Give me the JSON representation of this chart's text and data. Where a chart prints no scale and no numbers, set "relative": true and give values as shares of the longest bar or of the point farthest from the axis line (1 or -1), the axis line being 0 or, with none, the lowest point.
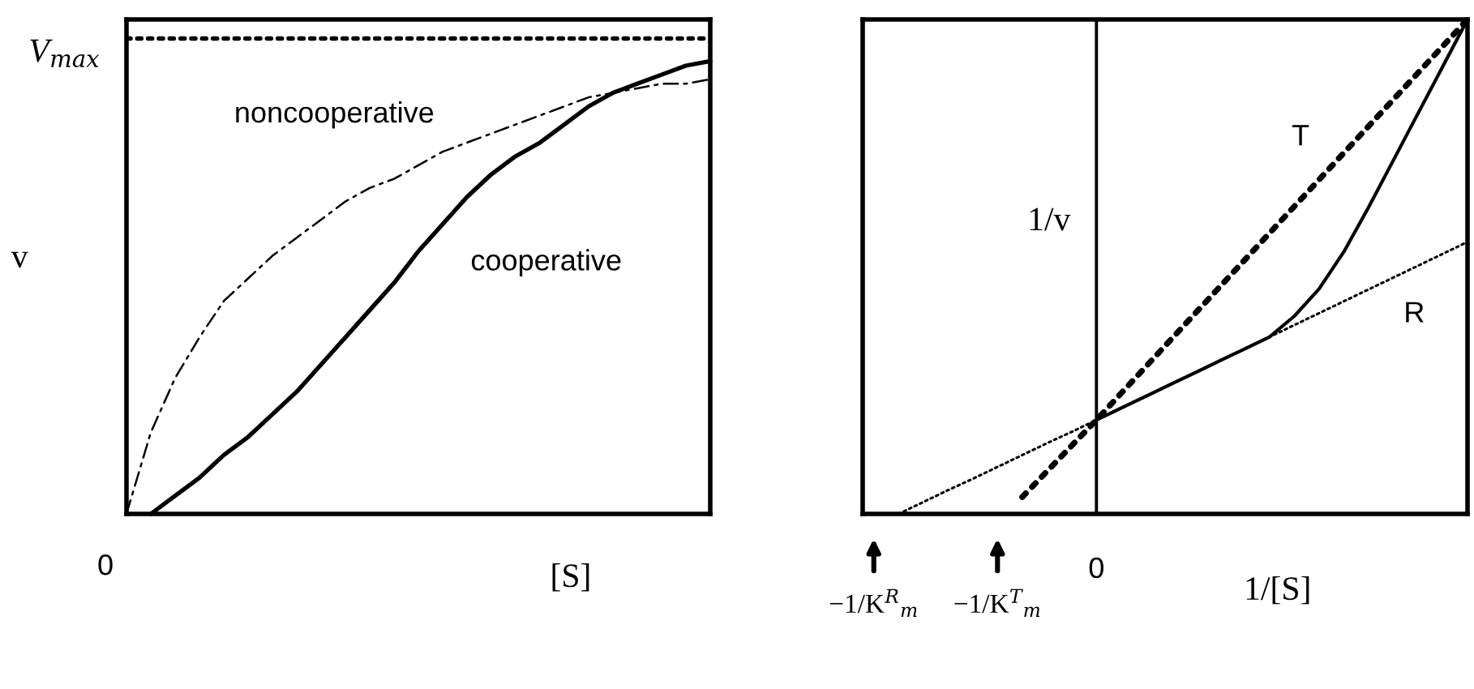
{
  "chart_data": [
    {
      "type": "line",
      "relative": true,
      "ylabel": "v",
      "xlabel": "[S]",
      "categories": [
        null,
        null,
        null,
        null,
        null,
        null,
        null,
        null,
        null,
        null,
        null,
        null,
        null,
        null,
        null,
        null,
        null,
        null,
        null,
        null,
        null,
        null,
        null,
        null,
        null
      ],
      "annotations": [
        "0"
      ],
      "ref_lines": [
        {
          "axis": "y",
          "value": 1.05,
          "label": "V$_{max}$",
          "line_style": "dotted",
          "color": "#000000"
        }
      ],
      "series": [
        {
          "name": "noncooperative",
          "color": "#000000",
          "line_style": "dashed",
          "values": [
            0,
            0.18,
            0.3,
            0.39,
            0.47,
            0.52,
            0.57,
            0.61,
            0.65,
            0.69,
            0.72,
            0.74,
            0.77,
            0.8,
            0.82,
            0.84,
            0.86,
            0.88,
            0.9,
            0.92,
            0.93,
            0.94,
            0.95,
            0.95,
            0.96
          ]
        },
        {
          "name": "cooperative",
          "color": "#000000",
          "line_style": "solid",
          "values": [
            null,
            0,
            0.04,
            0.08,
            0.13,
            0.17,
            0.22,
            0.27,
            0.33,
            0.39,
            0.45,
            0.51,
            0.58,
            0.64,
            0.7,
            0.75,
            0.79,
            0.82,
            0.86,
            0.9,
            0.93,
            0.95,
            0.97,
            0.99,
            1
          ]
        }
      ]
    },
    {
      "type": "line",
      "relative": true,
      "ylabel": "1/v",
      "xlabel": "1/[S]",
      "categories": [
        "−1/K$^{R}$$_{m}$",
        null,
        null,
        null,
        null,
        "−1/K$^{T}$$_{m}$",
        null,
        null,
        null,
        "0",
        null,
        null,
        null,
        null,
        null,
        null,
        null,
        null,
        null,
        null,
        null,
        null,
        null,
        null,
        null
      ],
      "ref_lines": [
        {
          "axis": "x",
          "value": "0",
          "line_style": "solid",
          "color": "#000000"
        }
      ],
      "series": [
        {
          "name": "T",
          "color": "#000000",
          "line_style": "dotted",
          "values": [
            null,
            null,
            null,
            null,
            null,
            null,
            0.034,
            0.086,
            0.138,
            0.19,
            0.244,
            0.298,
            0.352,
            0.406,
            0.46,
            0.514,
            0.568,
            0.622,
            0.676,
            0.73,
            0.784,
            0.838,
            0.892,
            0.946,
            1
          ]
        },
        {
          "name": "R",
          "color": "#000000",
          "line_style": "dotted",
          "values": [
            null,
            0,
            0.024,
            0.048,
            0.071,
            0.095,
            0.119,
            0.143,
            0.166,
            0.19,
            0.214,
            0.238,
            0.262,
            0.286,
            0.31,
            0.334,
            0.358,
            0.382,
            0.406,
            0.43,
            0.454,
            0.478,
            0.502,
            0.526,
            0.55
          ]
        },
        {
          "color": "#000000",
          "line_style": "solid",
          "values": [
            null,
            null,
            null,
            null,
            null,
            null,
            null,
            null,
            null,
            0.19,
            0.214,
            0.238,
            0.262,
            0.286,
            0.31,
            0.334,
            0.358,
            0.4,
            0.455,
            0.53,
            0.62,
            0.715,
            0.81,
            0.905,
            1
          ]
        }
      ]
    }
  ]
}
